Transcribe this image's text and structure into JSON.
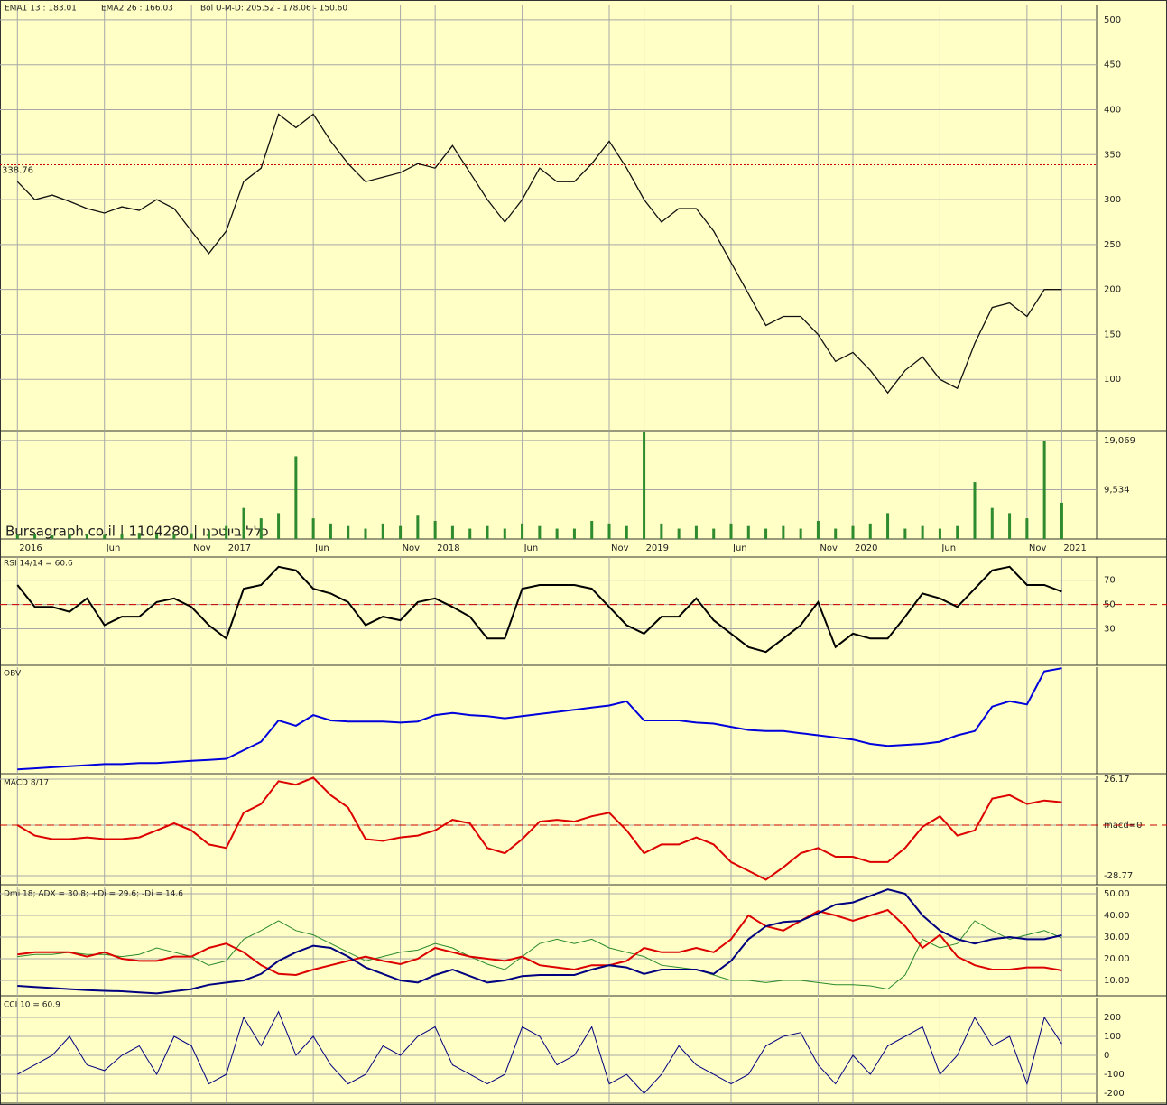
{
  "chart_data": [
    {
      "type": "line",
      "header": [
        {
          "text": "EMA1 13 : 183.01",
          "color": "#1a1aff"
        },
        {
          "text": "EMA2 26 : 166.03",
          "color": "#e08000"
        },
        {
          "text": "Bol U-M-D: 205.52 - 178.06 - 150.60",
          "color": "#222222"
        }
      ],
      "x": [
        "2016-01",
        "2016-02",
        "2016-03",
        "2016-04",
        "2016-05",
        "2016-06",
        "2016-07",
        "2016-08",
        "2016-09",
        "2016-10",
        "2016-11",
        "2016-12",
        "2017-01",
        "2017-02",
        "2017-03",
        "2017-04",
        "2017-05",
        "2017-06",
        "2017-07",
        "2017-08",
        "2017-09",
        "2017-10",
        "2017-11",
        "2017-12",
        "2018-01",
        "2018-02",
        "2018-03",
        "2018-04",
        "2018-05",
        "2018-06",
        "2018-07",
        "2018-08",
        "2018-09",
        "2018-10",
        "2018-11",
        "2018-12",
        "2019-01",
        "2019-02",
        "2019-03",
        "2019-04",
        "2019-05",
        "2019-06",
        "2019-07",
        "2019-08",
        "2019-09",
        "2019-10",
        "2019-11",
        "2019-12",
        "2020-01",
        "2020-02",
        "2020-03",
        "2020-04",
        "2020-05",
        "2020-06",
        "2020-07",
        "2020-08",
        "2020-09",
        "2020-10",
        "2020-11",
        "2020-12",
        "2021-01"
      ],
      "xlim": [
        "2015-12",
        "2021-03"
      ],
      "xticks": [
        {
          "value": "2016-01",
          "label": "2016"
        },
        {
          "value": "2016-06",
          "label": "Jun"
        },
        {
          "value": "2016-11",
          "label": "Nov"
        },
        {
          "value": "2017-01",
          "label": "2017"
        },
        {
          "value": "2017-06",
          "label": "Jun"
        },
        {
          "value": "2017-11",
          "label": "Nov"
        },
        {
          "value": "2018-01",
          "label": "2018"
        },
        {
          "value": "2018-06",
          "label": "Jun"
        },
        {
          "value": "2018-11",
          "label": "Nov"
        },
        {
          "value": "2019-01",
          "label": "2019"
        },
        {
          "value": "2019-06",
          "label": "Jun"
        },
        {
          "value": "2019-11",
          "label": "Nov"
        },
        {
          "value": "2020-01",
          "label": "2020"
        },
        {
          "value": "2020-06",
          "label": "Jun"
        },
        {
          "value": "2020-11",
          "label": "Nov"
        },
        {
          "value": "2021-01",
          "label": "2021"
        }
      ],
      "ylim": [
        43,
        517
      ],
      "yticks": [
        100,
        150,
        200,
        250,
        300,
        350,
        400,
        450,
        500
      ],
      "hline": 338.76,
      "series": [
        {
          "color": "#111111",
          "width": 1.3,
          "values": [
            320,
            300,
            305,
            298,
            290,
            285,
            292,
            288,
            300,
            290,
            265,
            240,
            265,
            320,
            335,
            395,
            380,
            395,
            365,
            340,
            320,
            325,
            330,
            340,
            335,
            360,
            330,
            300,
            275,
            300,
            335,
            320,
            320,
            340,
            365,
            335,
            300,
            275,
            290,
            290,
            265,
            230,
            195,
            160,
            170,
            170,
            150,
            120,
            130,
            110,
            85,
            110,
            125,
            100,
            90,
            140,
            180,
            185,
            170,
            200,
            200
          ]
        }
      ]
    },
    {
      "type": "bar",
      "watermark": "Bursagraph.co.il | 1104280 | כלל ביוטכנו",
      "ylim": [
        0,
        20800
      ],
      "yticks": [
        {
          "value": 19069,
          "label": "19,069"
        },
        {
          "value": 9534,
          "label": "9,534"
        }
      ],
      "color": "#2e8b2e",
      "values": [
        800,
        900,
        700,
        900,
        1000,
        800,
        900,
        1200,
        1000,
        900,
        1100,
        1500,
        2500,
        6000,
        4000,
        5000,
        16000,
        4000,
        3000,
        2500,
        2000,
        3000,
        2500,
        4500,
        3500,
        2500,
        2000,
        2500,
        2000,
        3000,
        2500,
        2000,
        2000,
        3500,
        3000,
        2500,
        20800,
        3000,
        2000,
        2500,
        2000,
        3000,
        2500,
        2000,
        2500,
        2000,
        3500,
        2000,
        2500,
        3000,
        5000,
        2000,
        2500,
        2000,
        2500,
        11000,
        6000,
        5000,
        4000,
        19000,
        7000
      ]
    },
    {
      "type": "line",
      "title": "RSI 14/14 = 60.6",
      "ylim": [
        0,
        89
      ],
      "yticks": [
        70,
        50,
        30
      ],
      "ref_line": 50,
      "series": [
        {
          "color": "#000000",
          "width": 2,
          "values": [
            66,
            48,
            48,
            44,
            55,
            33,
            40,
            40,
            52,
            55,
            48,
            33,
            22,
            63,
            66,
            81,
            78,
            63,
            59,
            52,
            33,
            40,
            37,
            52,
            55,
            48,
            40,
            22,
            22,
            63,
            66,
            66,
            66,
            63,
            48,
            33,
            26,
            40,
            40,
            55,
            37,
            26,
            15,
            11,
            22,
            33,
            52,
            15,
            26,
            22,
            22,
            40,
            59,
            55,
            48,
            63,
            78,
            81,
            66,
            66,
            60.6
          ]
        }
      ]
    },
    {
      "type": "line",
      "title": "OBV",
      "ylim": [
        0,
        100
      ],
      "series": [
        {
          "color": "#0000dd",
          "width": 2,
          "values": [
            4,
            5,
            6,
            7,
            8,
            9,
            9,
            10,
            10,
            11,
            12,
            13,
            14,
            22,
            30,
            50,
            45,
            55,
            50,
            49,
            49,
            49,
            48,
            49,
            55,
            57,
            55,
            54,
            52,
            54,
            56,
            58,
            60,
            62,
            64,
            68,
            50,
            50,
            50,
            48,
            47,
            44,
            41,
            40,
            40,
            38,
            36,
            34,
            32,
            28,
            26,
            27,
            28,
            30,
            36,
            40,
            63,
            68,
            65,
            96,
            99
          ]
        }
      ]
    },
    {
      "type": "line",
      "title": "MACD 8/17",
      "ylim": [
        -33.9,
        27.7
      ],
      "yticks": [
        26.17,
        {
          "value": 0,
          "label": "macd=0"
        },
        -28.77
      ],
      "ref_line": 0,
      "series": [
        {
          "color": "#dd0000",
          "width": 2,
          "values": [
            0,
            -6,
            -8,
            -8,
            -7,
            -8,
            -8,
            -7,
            -3,
            1,
            -3,
            -11,
            -13,
            7,
            12,
            25,
            23,
            27,
            17,
            10,
            -8,
            -9,
            -7,
            -6,
            -3,
            3,
            1,
            -13,
            -16,
            -8,
            2,
            3,
            2,
            5,
            7,
            -3,
            -16,
            -11,
            -11,
            -7,
            -11,
            -21,
            -26,
            -31,
            -24,
            -16,
            -13,
            -18,
            -18,
            -21,
            -21,
            -13,
            -1,
            5,
            -6,
            -3,
            15,
            17,
            12,
            14,
            13
          ]
        }
      ]
    },
    {
      "type": "line",
      "title": "Dmi 18; ADX = 30.8; +Di = 29.6; -Di = 14.6",
      "ylim": [
        2.9,
        52.9
      ],
      "yticks": [
        {
          "value": 50,
          "label": "50.00"
        },
        {
          "value": 40,
          "label": "40.00"
        },
        {
          "value": 30,
          "label": "30.00"
        },
        {
          "value": 20,
          "label": "20.00"
        },
        {
          "value": 10,
          "label": "10.00"
        }
      ],
      "series": [
        {
          "color": "#2a8a2a",
          "width": 1,
          "values": [
            21,
            22,
            22,
            23,
            22,
            22,
            21,
            22,
            25,
            23,
            21,
            17,
            19,
            29,
            33,
            37.5,
            33,
            31,
            27,
            23,
            19,
            21,
            23,
            24,
            27,
            25,
            21,
            17.5,
            15,
            21,
            27,
            29,
            27,
            29,
            25,
            23,
            21,
            17,
            16,
            15,
            12.5,
            10,
            10,
            9,
            10,
            10,
            9,
            8,
            8,
            7.5,
            6,
            12.5,
            29,
            25,
            27,
            37.5,
            33,
            29,
            31,
            33,
            29.6
          ]
        },
        {
          "color": "#dd0000",
          "width": 2,
          "values": [
            22,
            23,
            23,
            23,
            21,
            23,
            20,
            19,
            19,
            21,
            21,
            25,
            27,
            23,
            17,
            13,
            12.5,
            15,
            17,
            19,
            21,
            19,
            17.5,
            20,
            25,
            23,
            21,
            20,
            19,
            21,
            17,
            16,
            15,
            17,
            17,
            19,
            25,
            23,
            23,
            25,
            23,
            29,
            40,
            35,
            33,
            37.5,
            42,
            40,
            37.5,
            40,
            42.5,
            35,
            25,
            31,
            21,
            17,
            15,
            15,
            16,
            16,
            14.6
          ]
        },
        {
          "color": "#000080",
          "width": 2,
          "values": [
            7.5,
            7,
            6.5,
            6,
            5.5,
            5.2,
            5,
            4.5,
            4,
            5,
            6,
            8,
            9,
            10,
            13,
            19,
            23,
            26,
            25,
            21,
            16,
            13,
            10,
            9,
            12.5,
            15,
            12,
            9,
            10,
            12,
            12.5,
            12.5,
            12.5,
            15,
            17,
            16,
            13,
            15,
            15,
            15,
            13,
            19,
            29,
            35,
            37,
            37.5,
            41,
            45,
            46,
            49,
            52,
            50,
            40,
            33,
            29,
            27,
            29,
            30,
            29,
            29,
            30.8
          ]
        }
      ]
    },
    {
      "type": "line",
      "title": "CCI 10 = 60.9",
      "ylim": [
        -252,
        300
      ],
      "yticks": [
        200,
        100,
        0,
        -100,
        -200
      ],
      "series": [
        {
          "color": "#000080",
          "width": 1,
          "values": [
            -100,
            -50,
            0,
            100,
            -50,
            -80,
            0,
            50,
            -100,
            100,
            50,
            -150,
            -100,
            200,
            50,
            230,
            0,
            100,
            -50,
            -150,
            -100,
            50,
            0,
            100,
            150,
            -50,
            -100,
            -150,
            -100,
            150,
            100,
            -50,
            0,
            150,
            -150,
            -100,
            -200,
            -100,
            50,
            -50,
            -100,
            -150,
            -100,
            50,
            100,
            120,
            -50,
            -150,
            0,
            -100,
            50,
            100,
            150,
            -100,
            0,
            200,
            50,
            100,
            -150,
            200,
            60.9
          ]
        }
      ]
    }
  ]
}
